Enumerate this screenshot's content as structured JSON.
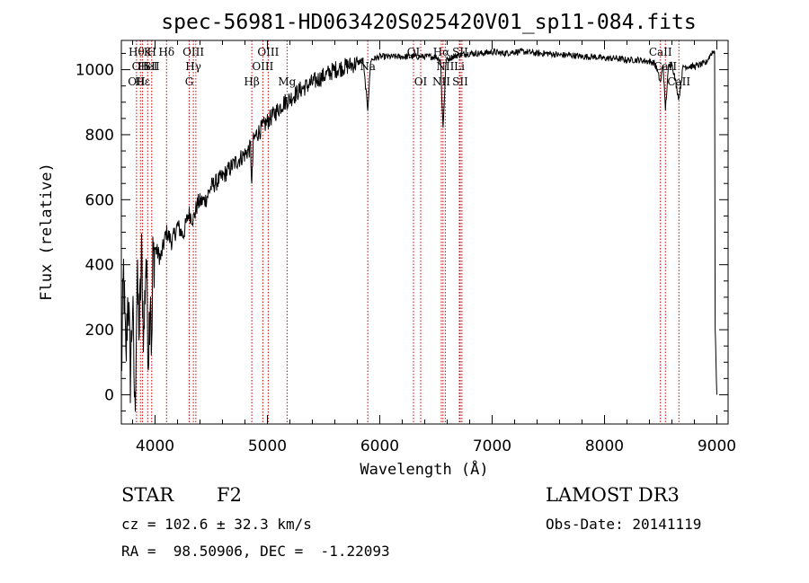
{
  "chart_data": {
    "type": "line",
    "title": "spec-56981-HD063420S025420V01_sp11-084.fits",
    "xlabel": "Wavelength (Å)",
    "ylabel": "Flux (relative)",
    "xlim": [
      3700,
      9100
    ],
    "ylim": [
      -90,
      1090
    ],
    "x_ticks": [
      4000,
      5000,
      6000,
      7000,
      8000,
      9000
    ],
    "y_ticks": [
      0,
      200,
      400,
      600,
      800,
      1000
    ],
    "grid": false,
    "series": [
      {
        "name": "flux",
        "x": [
          3700,
          3720,
          3740,
          3760,
          3780,
          3800,
          3820,
          3840,
          3860,
          3880,
          3900,
          3920,
          3940,
          3960,
          3970,
          3980,
          4000,
          4050,
          4100,
          4150,
          4200,
          4250,
          4300,
          4340,
          4380,
          4450,
          4500,
          4600,
          4700,
          4800,
          4850,
          4861,
          4875,
          4900,
          4950,
          5000,
          5050,
          5100,
          5150,
          5200,
          5300,
          5400,
          5500,
          5600,
          5700,
          5800,
          5850,
          5893,
          5920,
          6000,
          6100,
          6200,
          6300,
          6400,
          6500,
          6540,
          6563,
          6590,
          6650,
          6700,
          6800,
          6900,
          7000,
          7100,
          7200,
          7300,
          7400,
          7500,
          7600,
          7700,
          7800,
          7900,
          8000,
          8100,
          8200,
          8300,
          8400,
          8450,
          8498,
          8520,
          8542,
          8570,
          8600,
          8662,
          8700,
          8800,
          8900,
          8950,
          8980,
          8985,
          9000
        ],
        "y": [
          50,
          380,
          90,
          330,
          60,
          280,
          -60,
          340,
          200,
          420,
          170,
          440,
          130,
          350,
          100,
          410,
          450,
          420,
          500,
          470,
          520,
          490,
          560,
          540,
          590,
          600,
          640,
          670,
          710,
          740,
          760,
          640,
          780,
          800,
          820,
          840,
          860,
          880,
          900,
          910,
          940,
          960,
          980,
          1000,
          1010,
          1020,
          1030,
          880,
          1030,
          1040,
          1040,
          1040,
          1040,
          1040,
          1040,
          1030,
          820,
          1030,
          1040,
          1045,
          1050,
          1050,
          1055,
          1050,
          1055,
          1055,
          1050,
          1050,
          1045,
          1045,
          1040,
          1040,
          1035,
          1035,
          1030,
          1030,
          1025,
          1020,
          960,
          1020,
          880,
          1010,
          1020,
          910,
          1010,
          1010,
          1020,
          1050,
          1060,
          200,
          0
        ]
      }
    ],
    "lines": [
      {
        "wl": 3835,
        "labels": [
          {
            "row": 1,
            "text": "Hθ"
          },
          {
            "row": 3,
            "text": "OII"
          }
        ]
      },
      {
        "wl": 3870,
        "labels": [
          {
            "row": 2,
            "text": "OII"
          }
        ]
      },
      {
        "wl": 3889,
        "labels": [
          {
            "row": 3,
            "text": "Hε"
          }
        ]
      },
      {
        "wl": 3934,
        "labels": [
          {
            "row": 1,
            "text": "K"
          },
          {
            "row": 2,
            "text": "HeI"
          }
        ]
      },
      {
        "wl": 3970,
        "labels": [
          {
            "row": 1,
            "text": "H"
          },
          {
            "row": 2,
            "text": "SII"
          }
        ]
      },
      {
        "wl": 4102,
        "labels": [
          {
            "row": 1,
            "text": "Hδ"
          }
        ]
      },
      {
        "wl": 4304,
        "labels": [
          {
            "row": 3,
            "text": "G"
          }
        ]
      },
      {
        "wl": 4341,
        "labels": [
          {
            "row": 1,
            "text": "OIII"
          },
          {
            "row": 2,
            "text": "Hγ"
          }
        ]
      },
      {
        "wl": 4363,
        "labels": []
      },
      {
        "wl": 4861,
        "labels": [
          {
            "row": 3,
            "text": "Hβ"
          }
        ]
      },
      {
        "wl": 4959,
        "labels": [
          {
            "row": 2,
            "text": "OIII"
          }
        ]
      },
      {
        "wl": 5007,
        "labels": [
          {
            "row": 1,
            "text": "OIII"
          }
        ]
      },
      {
        "wl": 5175,
        "labels": [
          {
            "row": 3,
            "text": "Mg"
          }
        ]
      },
      {
        "wl": 5893,
        "labels": [
          {
            "row": 2,
            "text": "Na"
          }
        ]
      },
      {
        "wl": 6300,
        "labels": [
          {
            "row": 1,
            "text": "OI"
          }
        ]
      },
      {
        "wl": 6364,
        "labels": [
          {
            "row": 3,
            "text": "OI"
          }
        ]
      },
      {
        "wl": 6548,
        "labels": [
          {
            "row": 1,
            "text": "Hα"
          },
          {
            "row": 3,
            "text": "NII"
          }
        ]
      },
      {
        "wl": 6563,
        "labels": []
      },
      {
        "wl": 6583,
        "labels": [
          {
            "row": 2,
            "text": "NII"
          }
        ]
      },
      {
        "wl": 6708,
        "labels": [
          {
            "row": 2,
            "text": "Li"
          }
        ]
      },
      {
        "wl": 6716,
        "labels": [
          {
            "row": 1,
            "text": "SII"
          },
          {
            "row": 3,
            "text": "SII"
          }
        ]
      },
      {
        "wl": 6731,
        "labels": []
      },
      {
        "wl": 8498,
        "labels": [
          {
            "row": 1,
            "text": "CaII"
          }
        ]
      },
      {
        "wl": 8542,
        "labels": [
          {
            "row": 2,
            "text": "CaII"
          }
        ]
      },
      {
        "wl": 8662,
        "labels": [
          {
            "row": 3,
            "text": "CaII"
          }
        ]
      }
    ]
  },
  "info": {
    "object_class": "STAR",
    "subclass": "F2",
    "survey": "LAMOST DR3",
    "cz_text": "cz = 102.6 ± 32.3 km/s",
    "obs_date": "Obs-Date: 20141119",
    "coords_text": "RA =  98.50906, DEC =  -1.22093"
  },
  "colors": {
    "line_marker": "#cc0000",
    "spectrum": "#000000"
  }
}
